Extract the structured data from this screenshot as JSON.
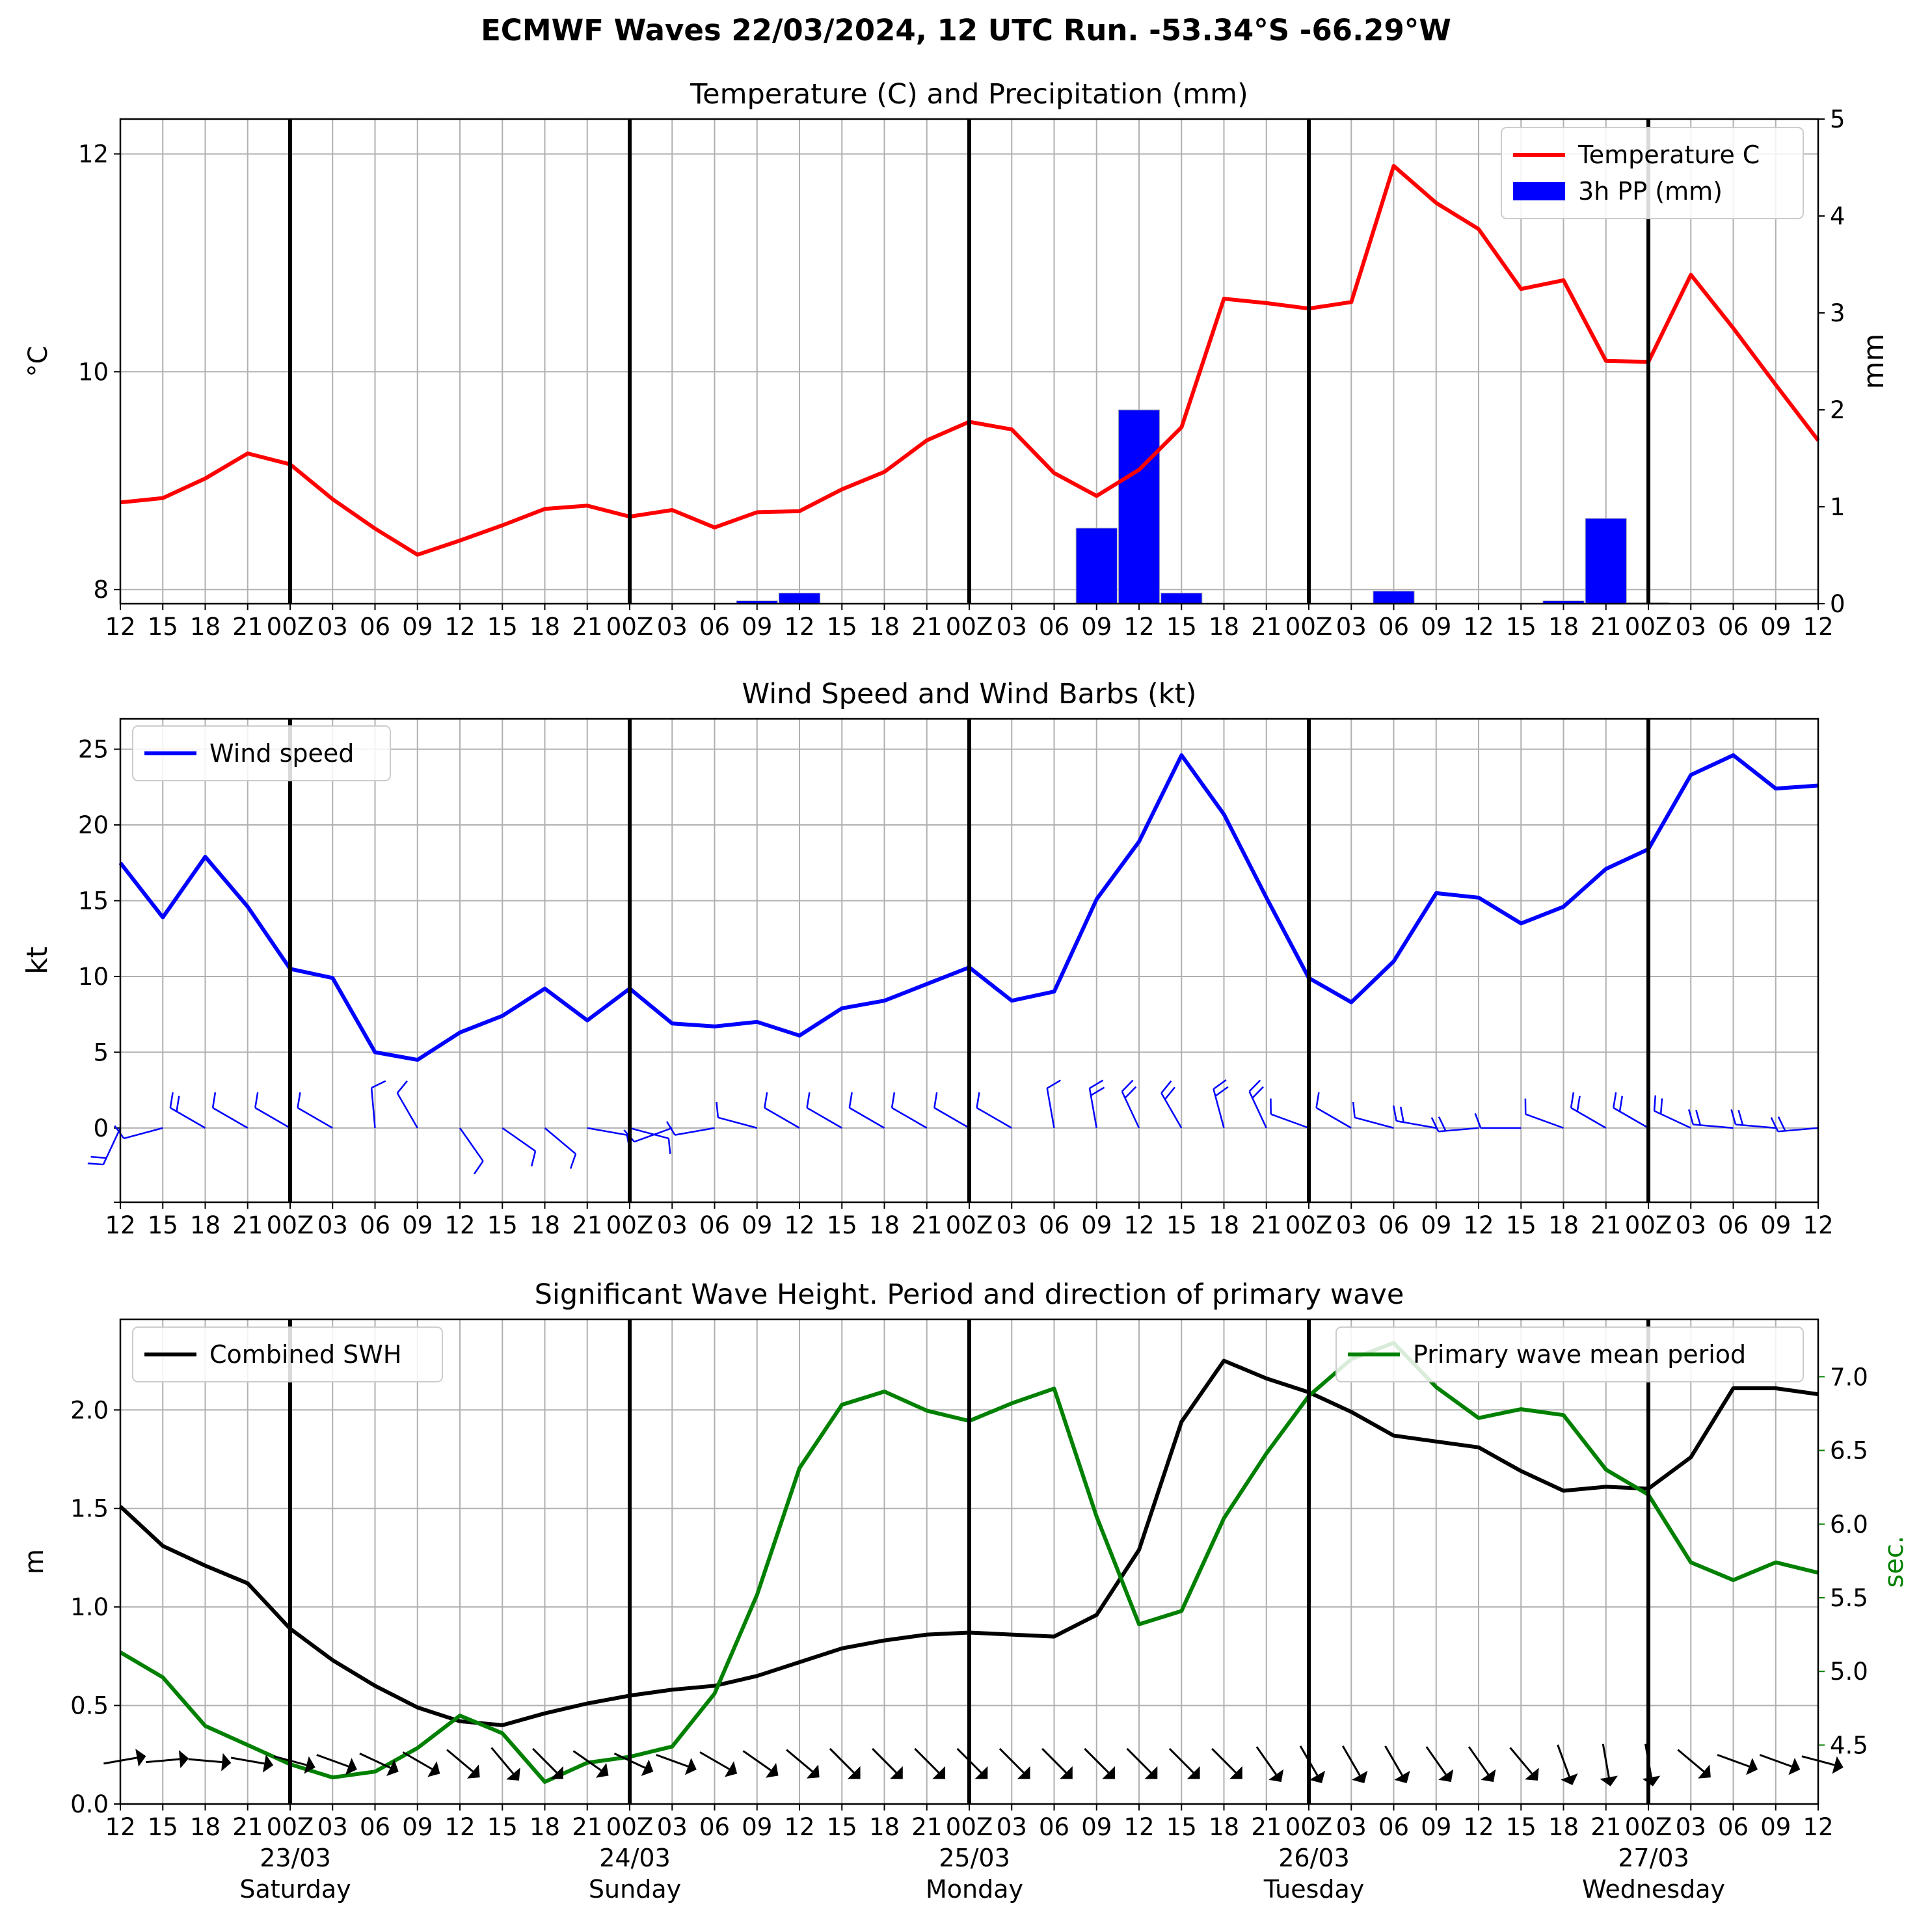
{
  "suptitle": "ECMWF Waves 22/03/2024, 12 UTC Run. -53.34°S -66.29°W",
  "x_tick_labels": [
    "12",
    "15",
    "18",
    "21",
    "00Z",
    "03",
    "06",
    "09",
    "12",
    "15",
    "18",
    "21",
    "00Z",
    "03",
    "06",
    "09",
    "12",
    "15",
    "18",
    "21",
    "00Z",
    "03",
    "06",
    "09",
    "12",
    "15",
    "18",
    "21",
    "00Z",
    "03",
    "06",
    "09",
    "12",
    "15",
    "18",
    "21",
    "00Z",
    "03",
    "06",
    "09",
    "12"
  ],
  "day_labels": [
    {
      "date": "23/03",
      "day": "Saturday"
    },
    {
      "date": "24/03",
      "day": "Sunday"
    },
    {
      "date": "25/03",
      "day": "Monday"
    },
    {
      "date": "26/03",
      "day": "Tuesday"
    },
    {
      "date": "27/03",
      "day": "Wednesday"
    }
  ],
  "colors": {
    "temperature": "#ff0000",
    "precip": "#0000ff",
    "wind": "#0000ff",
    "swh": "#000000",
    "period": "#008000",
    "grid": "#b0b0b0",
    "day_line": "#000000"
  },
  "chart_data": [
    {
      "type": "line",
      "title": "Temperature (C) and Precipitation (mm)",
      "ylabel": "$^\\circ$C",
      "y2label": "mm",
      "ylim": [
        7.87,
        12.32
      ],
      "y2lim": [
        0,
        5
      ],
      "yticks": [
        8,
        10,
        12
      ],
      "y2ticks": [
        0,
        1,
        2,
        3,
        4,
        5
      ],
      "legend": "top-right",
      "series": [
        {
          "name": "Temperature C",
          "values": [
            8.8,
            8.84,
            9.02,
            9.25,
            9.15,
            8.83,
            8.56,
            8.32,
            8.45,
            8.59,
            8.74,
            8.77,
            8.67,
            8.73,
            8.57,
            8.71,
            8.72,
            8.92,
            9.08,
            9.37,
            9.54,
            9.47,
            9.07,
            8.86,
            9.1,
            9.49,
            10.67,
            10.63,
            10.58,
            10.64,
            11.89,
            11.55,
            11.31,
            10.76,
            10.84,
            10.1,
            10.09,
            10.89,
            10.4,
            9.88,
            9.37
          ]
        },
        {
          "name": "3h PP (mm)",
          "axis": "right",
          "values": [
            0,
            0,
            0,
            0,
            0,
            0,
            0,
            0,
            0,
            0,
            0,
            0,
            0,
            0,
            0,
            0.03,
            0.11,
            0,
            0,
            0,
            0,
            0,
            0,
            0.78,
            2.0,
            0.11,
            0,
            0,
            0,
            0,
            0.13,
            0,
            0,
            0,
            0.03,
            0.88,
            0.01,
            0,
            0,
            0,
            0
          ]
        }
      ]
    },
    {
      "type": "line",
      "title": "Wind Speed and Wind Barbs (kt)",
      "ylabel": "kt",
      "ylim": [
        -4.9,
        27
      ],
      "yticks": [
        0,
        5,
        10,
        15,
        20,
        25
      ],
      "legend": "top-left",
      "series": [
        {
          "name": "Wind speed",
          "values": [
            17.5,
            13.9,
            17.9,
            14.6,
            10.5,
            9.9,
            5.0,
            4.5,
            6.3,
            7.4,
            9.2,
            7.1,
            9.2,
            6.9,
            6.7,
            7.0,
            6.1,
            7.9,
            8.4,
            9.5,
            10.6,
            8.4,
            9.0,
            15.1,
            18.9,
            24.6,
            20.7,
            15.2,
            9.9,
            8.3,
            11.0,
            15.5,
            15.2,
            13.5,
            14.6,
            17.1,
            18.4,
            23.3,
            24.6,
            22.4,
            22.6
          ]
        }
      ],
      "barb_directions_deg": [
        205,
        255,
        300,
        300,
        300,
        300,
        355,
        330,
        145,
        125,
        130,
        100,
        105,
        250,
        260,
        285,
        300,
        300,
        300,
        300,
        300,
        300,
        350,
        350,
        335,
        330,
        345,
        335,
        290,
        300,
        285,
        280,
        265,
        270,
        290,
        300,
        300,
        295,
        275,
        275,
        265
      ]
    },
    {
      "type": "line",
      "title": "Significant Wave Height. Period and direction of primary wave",
      "ylabel": "m",
      "y2label": "sec.",
      "ylim": [
        0,
        2.46
      ],
      "y2lim": [
        4.1,
        7.39
      ],
      "yticks": [
        0.0,
        0.5,
        1.0,
        1.5,
        2.0
      ],
      "y2ticks": [
        4.5,
        5.0,
        5.5,
        6.0,
        6.5,
        7.0
      ],
      "series": [
        {
          "name": "Combined SWH",
          "legend": "top-left",
          "values": [
            1.51,
            1.31,
            1.21,
            1.12,
            0.89,
            0.73,
            0.6,
            0.49,
            0.42,
            0.4,
            0.46,
            0.51,
            0.55,
            0.58,
            0.6,
            0.65,
            0.72,
            0.79,
            0.83,
            0.86,
            0.87,
            0.86,
            0.85,
            0.96,
            1.29,
            1.94,
            2.25,
            2.16,
            2.09,
            1.99,
            1.87,
            1.84,
            1.81,
            1.69,
            1.59,
            1.61,
            1.6,
            1.76,
            2.11,
            2.11,
            2.08
          ]
        },
        {
          "name": "Primary wave mean period",
          "legend": "top-right",
          "axis": "right",
          "values": [
            5.13,
            4.96,
            4.63,
            4.5,
            4.37,
            4.28,
            4.32,
            4.48,
            4.7,
            4.58,
            4.25,
            4.38,
            4.42,
            4.49,
            4.85,
            5.52,
            6.38,
            6.81,
            6.9,
            6.77,
            6.7,
            6.82,
            6.92,
            6.05,
            5.32,
            5.41,
            6.04,
            6.48,
            6.87,
            7.12,
            7.23,
            6.93,
            6.72,
            6.78,
            6.74,
            6.37,
            6.2,
            5.74,
            5.62,
            5.74,
            5.67
          ]
        }
      ],
      "arrow_directions_deg": [
        80,
        85,
        95,
        100,
        105,
        110,
        115,
        120,
        130,
        140,
        135,
        125,
        115,
        110,
        120,
        125,
        130,
        135,
        135,
        135,
        135,
        135,
        135,
        135,
        135,
        135,
        135,
        145,
        150,
        150,
        150,
        145,
        145,
        140,
        160,
        170,
        170,
        130,
        110,
        110,
        105
      ]
    }
  ]
}
